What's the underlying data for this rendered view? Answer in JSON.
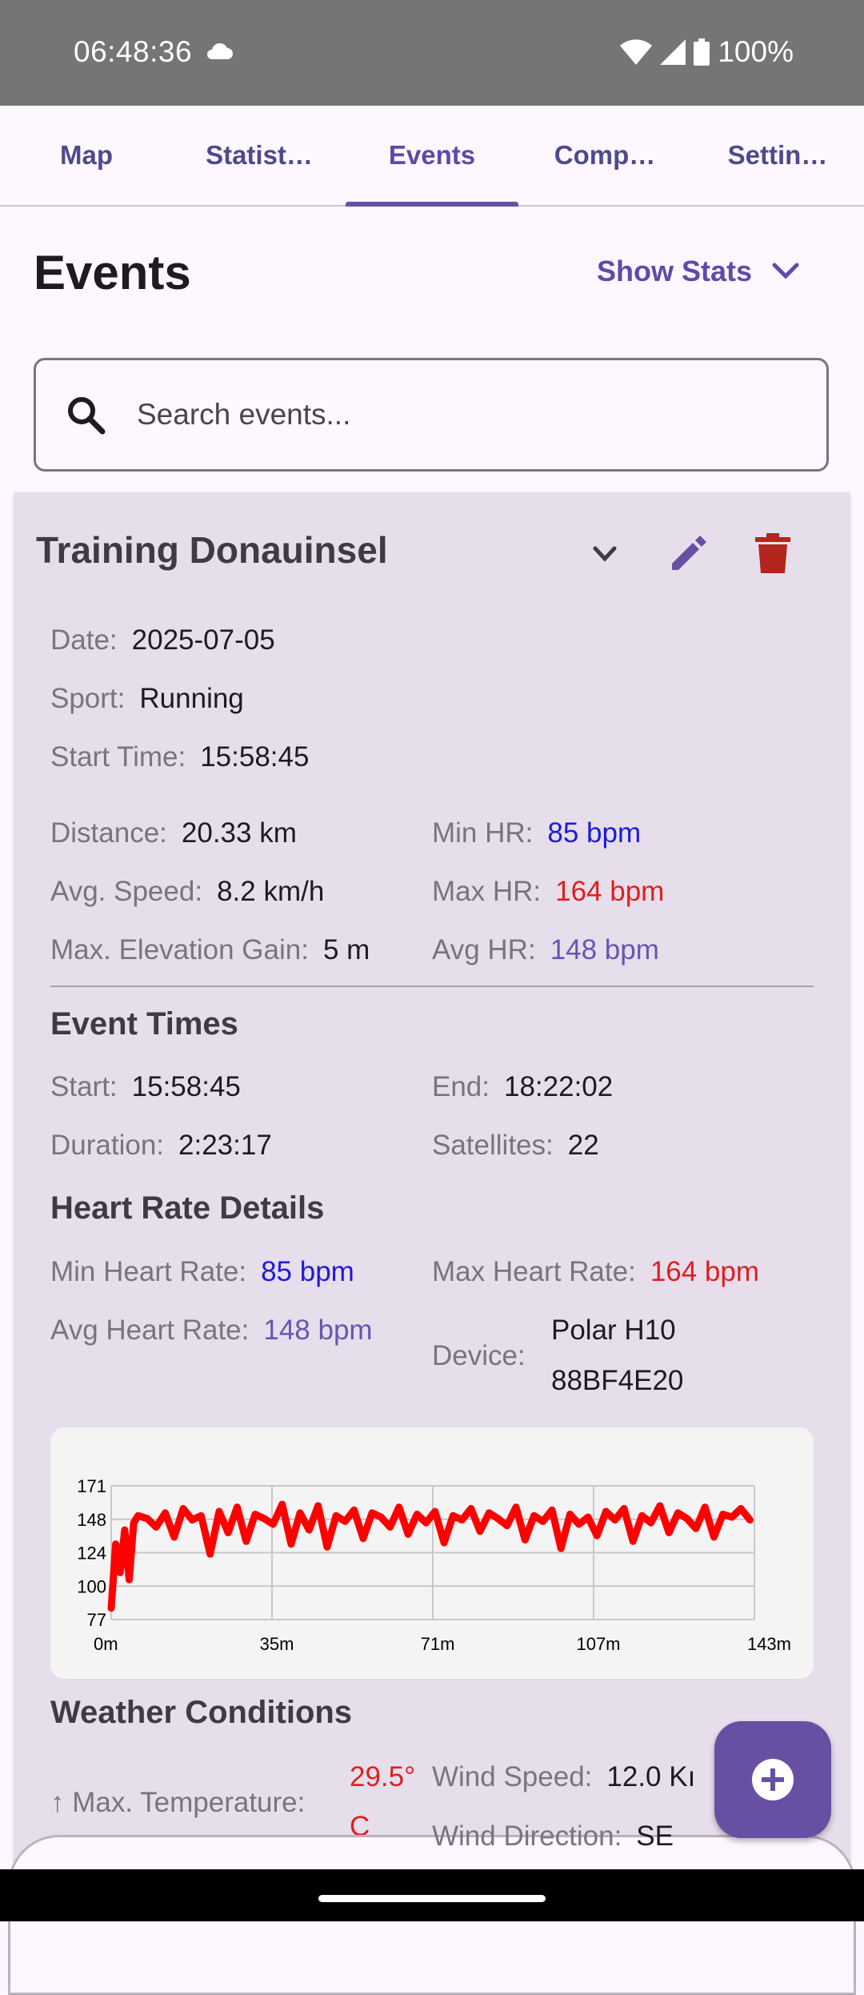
{
  "status": {
    "time": "06:48:36",
    "battery": "100%"
  },
  "tabs": [
    {
      "label": "Map"
    },
    {
      "label": "Statist…"
    },
    {
      "label": "Events"
    },
    {
      "label": "Comp…"
    },
    {
      "label": "Settin…"
    }
  ],
  "header": {
    "title": "Events",
    "show_stats": "Show Stats"
  },
  "search": {
    "placeholder": "Search events..."
  },
  "event": {
    "title": "Training Donauinsel",
    "date_label": "Date:",
    "date": "2025-07-05",
    "sport_label": "Sport:",
    "sport": "Running",
    "start_time_label": "Start Time:",
    "start_time": "15:58:45",
    "distance_label": "Distance:",
    "distance": "20.33 km",
    "avg_speed_label": "Avg. Speed:",
    "avg_speed": "8.2 km/h",
    "elev_label": "Max. Elevation Gain:",
    "elev": "5 m",
    "min_hr_label": "Min HR:",
    "min_hr": "85 bpm",
    "max_hr_label": "Max HR:",
    "max_hr": "164 bpm",
    "avg_hr_label": "Avg HR:",
    "avg_hr": "148 bpm"
  },
  "event_times": {
    "heading": "Event Times",
    "start_label": "Start:",
    "start": "15:58:45",
    "end_label": "End:",
    "end": "18:22:02",
    "duration_label": "Duration:",
    "duration": "2:23:17",
    "satellites_label": "Satellites:",
    "satellites": "22"
  },
  "heart_rate": {
    "heading": "Heart Rate Details",
    "min_label": "Min Heart Rate:",
    "min": "85 bpm",
    "max_label": "Max Heart Rate:",
    "max": "164 bpm",
    "avg_label": "Avg Heart Rate:",
    "avg": "148 bpm",
    "device_label": "Device:",
    "device_line1": "Polar H10",
    "device_line2": "88BF4E20"
  },
  "weather": {
    "heading": "Weather Conditions",
    "max_temp_label": "↑ Max. Temperature:",
    "max_temp_line1": "29.5°",
    "max_temp_line2": "C",
    "wind_speed_label": "Wind Speed:",
    "wind_speed": "12.0 Kı",
    "wind_dir_label": "Wind Direction:",
    "wind_dir": "SE"
  },
  "colors": {
    "accent": "#6750A4",
    "delete": "#B3261E",
    "min_hr": "#1C1BD6",
    "max_hr": "#E01E1E",
    "avg_hr": "#6458B0"
  },
  "chart_data": {
    "type": "line",
    "yticks": [
      "171",
      "148",
      "124",
      "100",
      "77"
    ],
    "xticks": [
      "0m",
      "35m",
      "71m",
      "107m",
      "143m"
    ],
    "ylim": [
      77,
      171
    ],
    "xlim": [
      0,
      143
    ],
    "series": [
      {
        "color": "#FF0000",
        "x": [
          0,
          1,
          2,
          3,
          4,
          5,
          6,
          8,
          10,
          12,
          14,
          16,
          18,
          20,
          22,
          24,
          26,
          28,
          30,
          32,
          34,
          36,
          38,
          40,
          42,
          44,
          46,
          48,
          50,
          52,
          54,
          56,
          58,
          60,
          62,
          64,
          66,
          68,
          70,
          72,
          74,
          76,
          78,
          80,
          82,
          84,
          86,
          88,
          90,
          92,
          94,
          96,
          98,
          100,
          102,
          104,
          106,
          108,
          110,
          112,
          114,
          116,
          118,
          120,
          122,
          124,
          126,
          128,
          130,
          132,
          134,
          136,
          138,
          140,
          142
        ],
        "y": [
          85,
          130,
          110,
          140,
          105,
          145,
          150,
          148,
          142,
          152,
          135,
          155,
          147,
          150,
          123,
          153,
          138,
          156,
          132,
          151,
          148,
          144,
          158,
          130,
          152,
          140,
          157,
          128,
          150,
          146,
          154,
          134,
          152,
          149,
          142,
          156,
          137,
          151,
          145,
          153,
          131,
          150,
          147,
          155,
          139,
          152,
          148,
          143,
          156,
          133,
          150,
          146,
          154,
          127,
          151,
          144,
          149,
          136,
          153,
          147,
          155,
          132,
          150,
          145,
          157,
          138,
          152,
          148,
          141,
          156,
          135,
          151,
          149,
          155,
          147
        ]
      }
    ]
  }
}
